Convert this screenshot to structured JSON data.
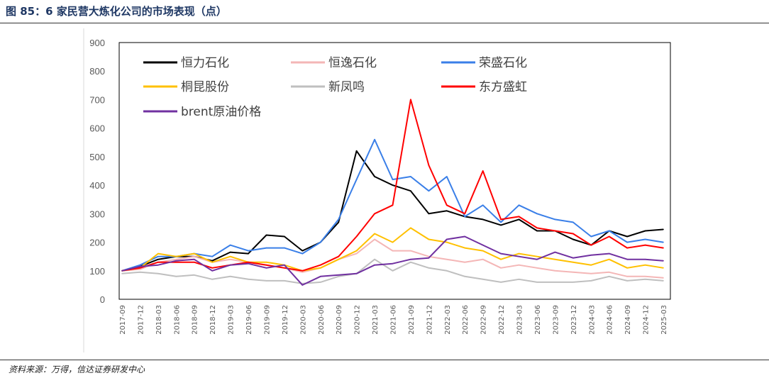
{
  "title": "图 85：6 家民营大炼化公司的市场表现（点）",
  "source": "资料来源：万得，信达证券研发中心",
  "chart_data": {
    "type": "line",
    "title": "6 家民营大炼化公司的市场表现（点）",
    "xlabel": "",
    "ylabel": "",
    "ylim": [
      0,
      900
    ],
    "yticks": [
      0,
      100,
      200,
      300,
      400,
      500,
      600,
      700,
      800,
      900
    ],
    "grid": false,
    "legend_position": "top-left",
    "x": [
      "2017-09",
      "2017-12",
      "2018-03",
      "2018-06",
      "2018-09",
      "2018-12",
      "2019-03",
      "2019-06",
      "2019-09",
      "2019-12",
      "2020-03",
      "2020-06",
      "2020-09",
      "2020-12",
      "2021-03",
      "2021-06",
      "2021-09",
      "2021-12",
      "2022-03",
      "2022-06",
      "2022-09",
      "2022-12",
      "2023-03",
      "2023-06",
      "2023-09",
      "2023-12",
      "2024-03",
      "2024-06",
      "2024-09",
      "2024-12",
      "2025-03"
    ],
    "series": [
      {
        "name": "恒力石化",
        "color": "#000000",
        "values": [
          100,
          115,
          140,
          150,
          150,
          135,
          165,
          160,
          225,
          220,
          170,
          200,
          270,
          520,
          430,
          400,
          380,
          300,
          310,
          290,
          280,
          260,
          280,
          240,
          240,
          210,
          190,
          240,
          220,
          240,
          245
        ]
      },
      {
        "name": "恒逸石化",
        "color": "#f4b6b6",
        "values": [
          100,
          105,
          130,
          140,
          150,
          130,
          140,
          130,
          120,
          110,
          95,
          110,
          140,
          160,
          210,
          170,
          170,
          150,
          140,
          130,
          140,
          110,
          120,
          110,
          100,
          95,
          90,
          95,
          80,
          80,
          75
        ]
      },
      {
        "name": "荣盛石化",
        "color": "#3a7fe8",
        "values": [
          100,
          120,
          150,
          150,
          160,
          150,
          190,
          170,
          180,
          180,
          160,
          200,
          280,
          420,
          560,
          420,
          430,
          380,
          430,
          290,
          330,
          270,
          330,
          300,
          280,
          270,
          220,
          240,
          200,
          210,
          200
        ]
      },
      {
        "name": "桐昆股份",
        "color": "#ffc000",
        "values": [
          100,
          110,
          160,
          150,
          160,
          130,
          150,
          130,
          130,
          120,
          100,
          110,
          140,
          170,
          230,
          200,
          250,
          210,
          200,
          180,
          170,
          140,
          160,
          150,
          140,
          130,
          120,
          140,
          110,
          120,
          110
        ]
      },
      {
        "name": "新凤鸣",
        "color": "#bfbfbf",
        "values": [
          90,
          95,
          90,
          80,
          85,
          70,
          80,
          70,
          65,
          65,
          55,
          60,
          80,
          90,
          140,
          100,
          130,
          110,
          100,
          80,
          70,
          60,
          70,
          60,
          60,
          60,
          65,
          80,
          65,
          70,
          65
        ]
      },
      {
        "name": "东方盛虹",
        "color": "#ff0000",
        "values": [
          100,
          110,
          130,
          130,
          130,
          110,
          120,
          130,
          120,
          110,
          100,
          120,
          150,
          220,
          300,
          330,
          700,
          470,
          330,
          300,
          450,
          280,
          290,
          250,
          240,
          230,
          190,
          220,
          180,
          190,
          180
        ]
      },
      {
        "name": "brent原油价格",
        "color": "#7030a0",
        "values": [
          100,
          115,
          120,
          135,
          140,
          100,
          120,
          125,
          110,
          120,
          50,
          80,
          85,
          90,
          120,
          125,
          140,
          145,
          210,
          220,
          190,
          160,
          150,
          140,
          165,
          145,
          155,
          160,
          140,
          140,
          135
        ]
      }
    ]
  }
}
